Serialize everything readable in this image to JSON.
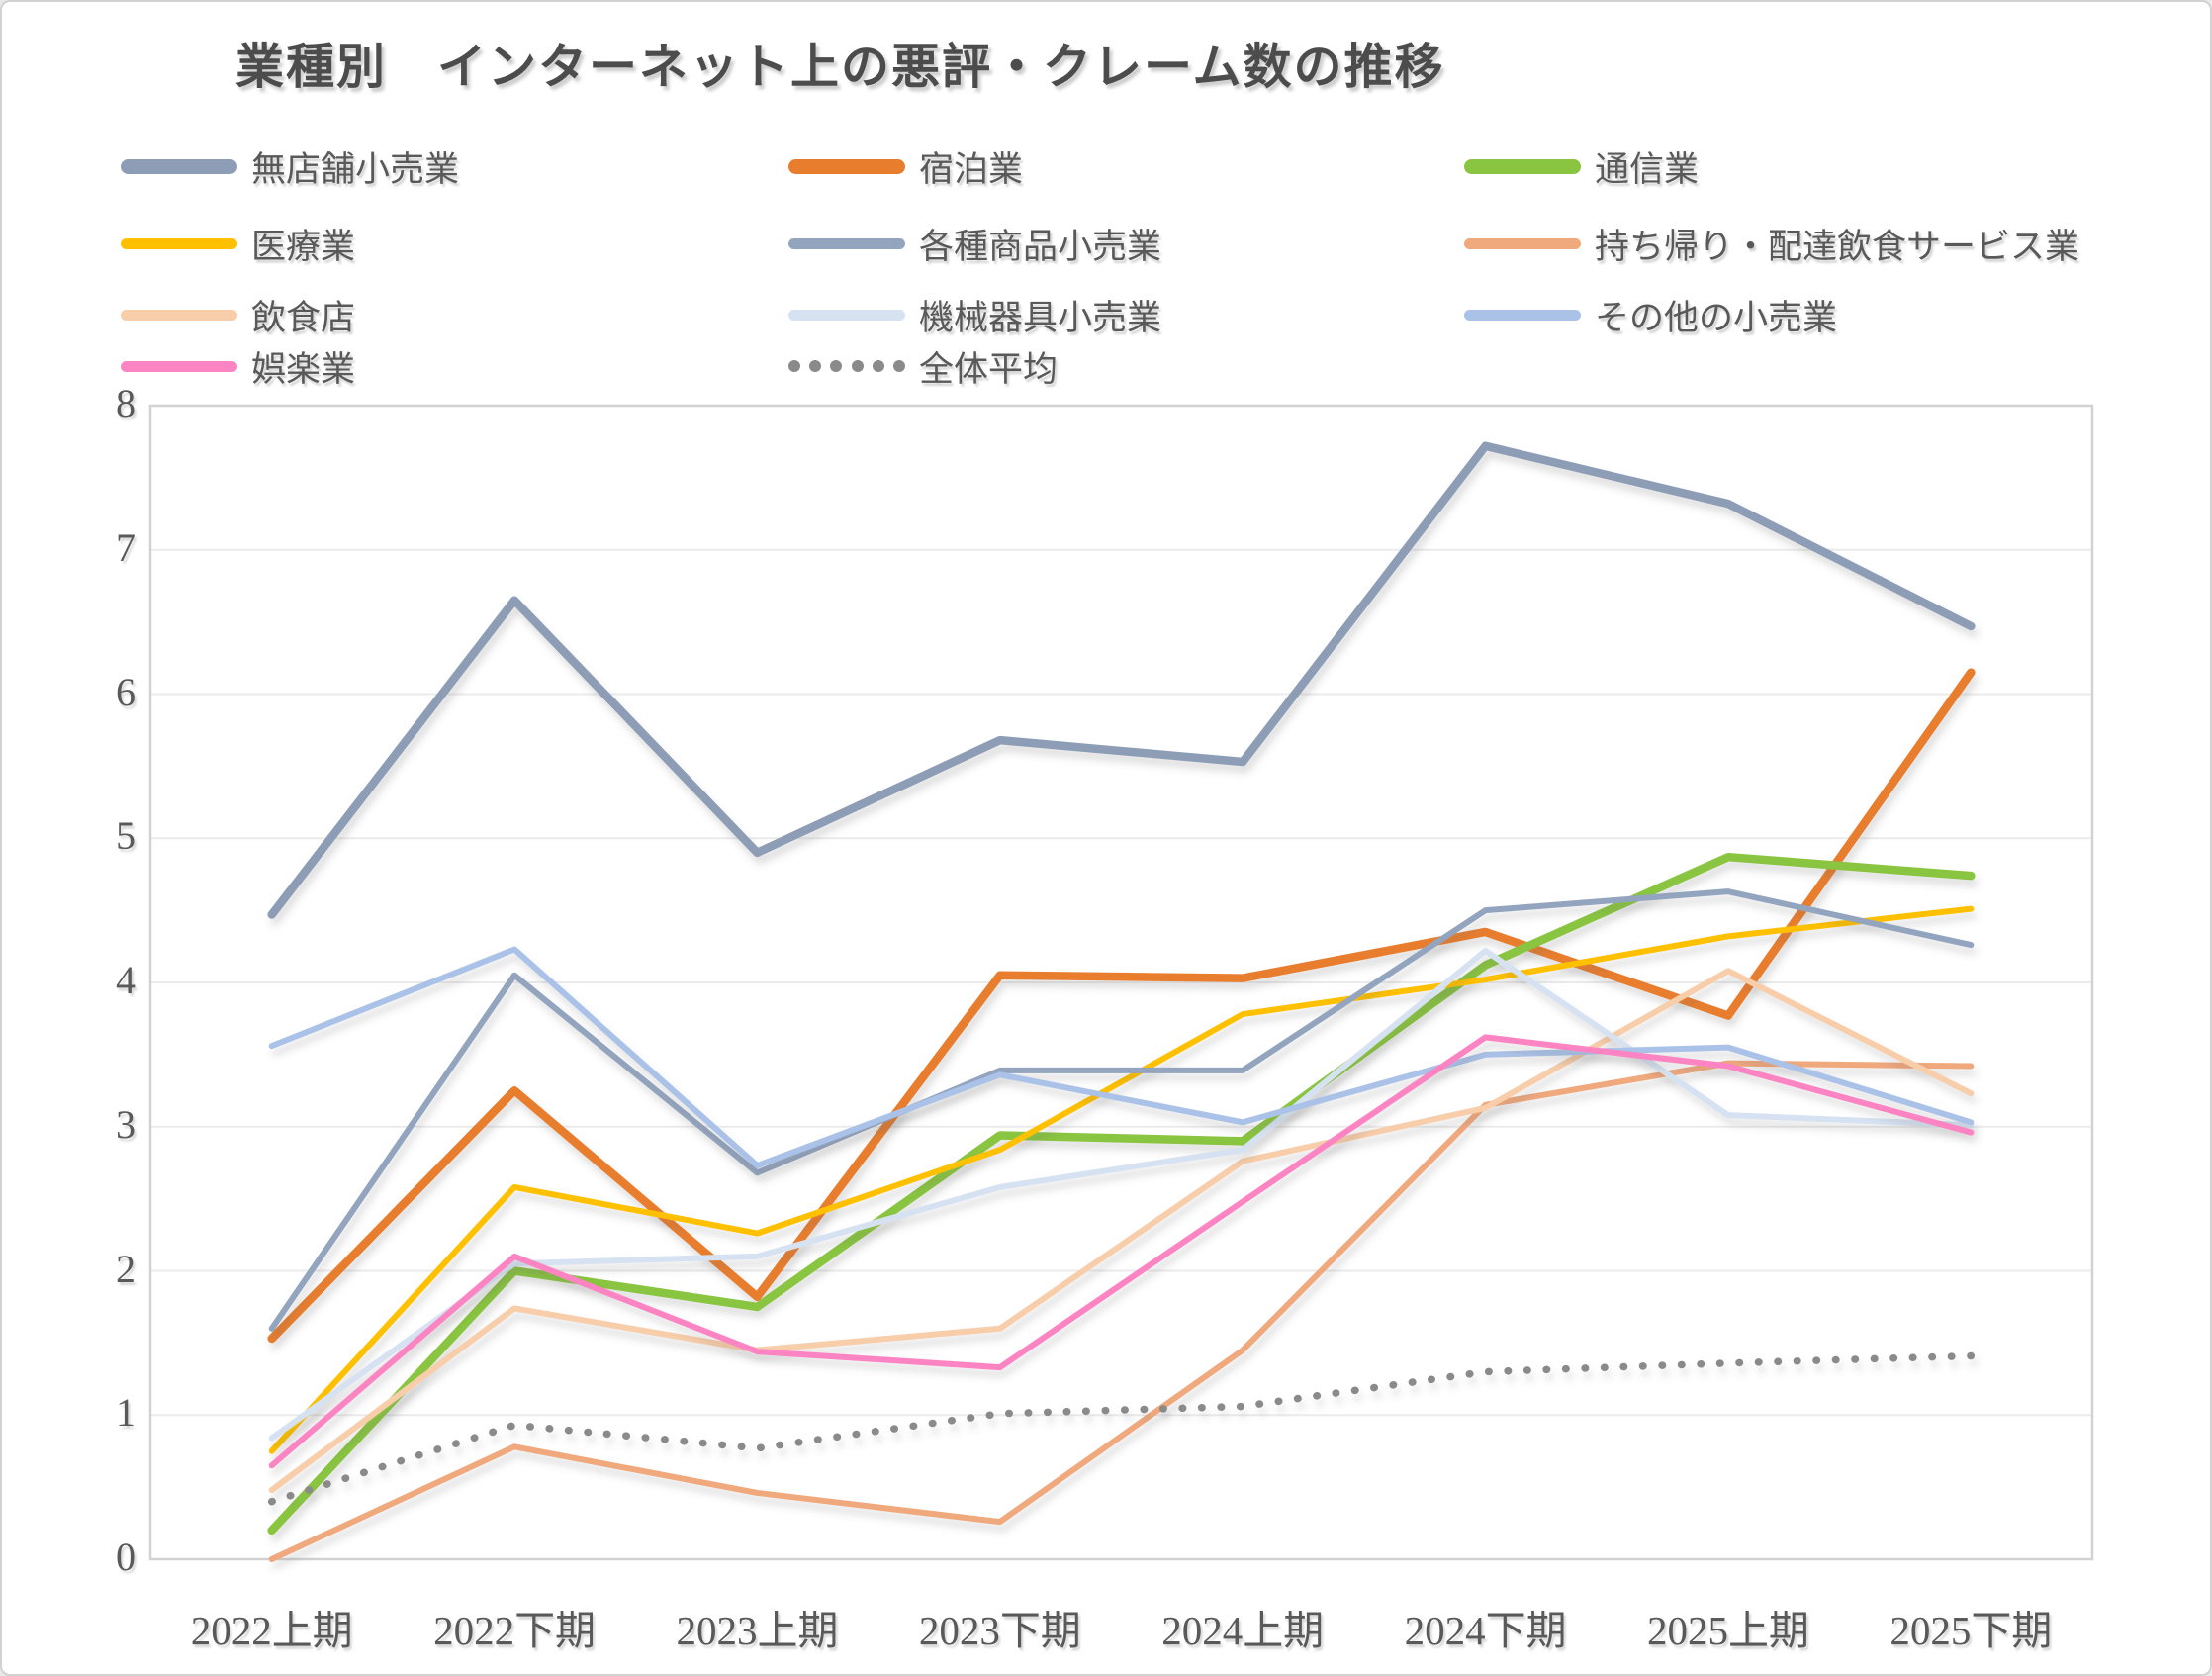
{
  "chart_data": {
    "type": "line",
    "title": "業種別　インターネット上の悪評・クレーム数の推移",
    "categories": [
      "2022上期",
      "2022下期",
      "2023上期",
      "2023下期",
      "2024上期",
      "2024下期",
      "2025上期",
      "2025下期"
    ],
    "ylim": [
      0,
      8
    ],
    "y_ticks": [
      0,
      1,
      2,
      3,
      4,
      5,
      6,
      7,
      8
    ],
    "grid": "horizontal",
    "legend_position": "top",
    "legend_columns": 3,
    "series": [
      {
        "name": "無店舗小売業",
        "color": "#8d9db6",
        "thick": true,
        "style": "solid",
        "values": [
          4.47,
          6.65,
          4.9,
          5.68,
          5.53,
          7.72,
          7.32,
          6.47
        ]
      },
      {
        "name": "宿泊業",
        "color": "#e87d2e",
        "thick": true,
        "style": "solid",
        "values": [
          1.53,
          3.25,
          1.82,
          4.05,
          4.03,
          4.35,
          3.77,
          6.15
        ]
      },
      {
        "name": "通信業",
        "color": "#89c540",
        "thick": true,
        "style": "solid",
        "values": [
          0.2,
          2.0,
          1.75,
          2.94,
          2.9,
          4.12,
          4.87,
          4.74
        ]
      },
      {
        "name": "医療業",
        "color": "#ffc000",
        "thick": false,
        "style": "solid",
        "values": [
          0.75,
          2.58,
          2.26,
          2.84,
          3.78,
          4.02,
          4.32,
          4.51
        ]
      },
      {
        "name": "各種商品小売業",
        "color": "#93a4be",
        "thick": false,
        "style": "solid",
        "values": [
          1.6,
          4.05,
          2.68,
          3.39,
          3.39,
          4.5,
          4.63,
          4.26
        ]
      },
      {
        "name": "持ち帰り・配達飲食サービス業",
        "color": "#f0a87d",
        "thick": false,
        "style": "solid",
        "values": [
          0.0,
          0.78,
          0.46,
          0.26,
          1.45,
          3.15,
          3.44,
          3.42
        ]
      },
      {
        "name": "飲食店",
        "color": "#f7cdaa",
        "thick": false,
        "style": "solid",
        "values": [
          0.48,
          1.74,
          1.45,
          1.6,
          2.76,
          3.13,
          4.08,
          3.23
        ]
      },
      {
        "name": "機械器具小売業",
        "color": "#d6e2f1",
        "thick": false,
        "style": "solid",
        "values": [
          0.84,
          2.05,
          2.1,
          2.58,
          2.84,
          4.22,
          3.08,
          3.01
        ]
      },
      {
        "name": "その他の小売業",
        "color": "#abc2e8",
        "thick": false,
        "style": "solid",
        "values": [
          3.56,
          4.23,
          2.73,
          3.36,
          3.03,
          3.5,
          3.55,
          3.03
        ]
      },
      {
        "name": "娯楽業",
        "color": "#fc84c3",
        "thick": false,
        "style": "solid",
        "values": [
          0.65,
          2.1,
          1.44,
          1.33,
          2.48,
          3.62,
          3.42,
          2.96
        ]
      },
      {
        "name": "全体平均",
        "color": "#8a8a8a",
        "thick": false,
        "style": "dotted",
        "values": [
          0.4,
          0.93,
          0.77,
          1.01,
          1.06,
          1.3,
          1.36,
          1.41
        ]
      }
    ]
  },
  "style": {
    "plot_border_color": "#d2d2d2",
    "gridline_color": "#ebebeb",
    "axis_label_color": "#595959",
    "title_color": "#4c4c4c",
    "background": "#ffffff"
  }
}
